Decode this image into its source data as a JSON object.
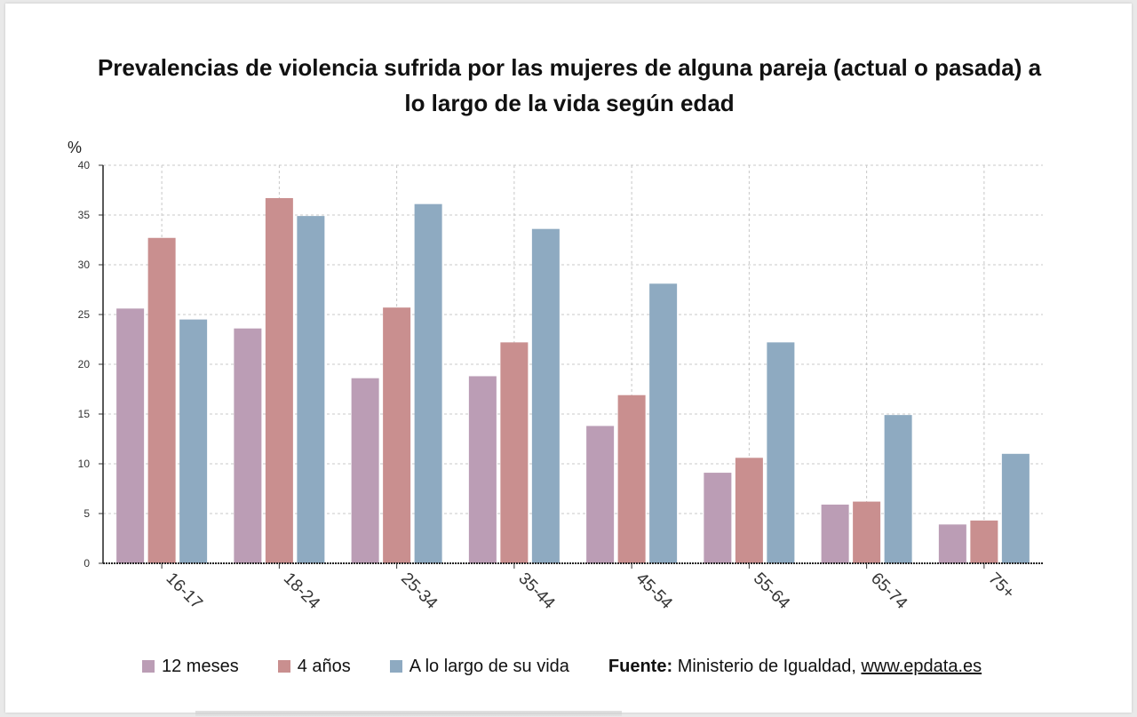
{
  "chart_data": {
    "type": "bar",
    "title": "Prevalencias de violencia sufrida por las mujeres de alguna pareja (actual o pasada) a lo largo de la vida según edad",
    "ylabel": "%",
    "xlabel": "",
    "ylim": [
      0,
      40
    ],
    "yticks": [
      0,
      5,
      10,
      15,
      20,
      25,
      30,
      35,
      40
    ],
    "grid": true,
    "legend_position": "bottom",
    "categories": [
      "16-17",
      "18-24",
      "25-34",
      "35-44",
      "45-54",
      "55-64",
      "65-74",
      "75+"
    ],
    "series": [
      {
        "name": "12 meses",
        "color": "#bb9db5",
        "values": [
          25.6,
          23.6,
          18.6,
          18.8,
          13.8,
          9.1,
          5.9,
          3.9
        ]
      },
      {
        "name": "4 años",
        "color": "#c98f8f",
        "values": [
          32.7,
          36.7,
          25.7,
          22.2,
          16.9,
          10.6,
          6.2,
          4.3
        ]
      },
      {
        "name": "A lo largo de su vida",
        "color": "#8eaac1",
        "values": [
          24.5,
          34.9,
          36.1,
          33.6,
          28.1,
          22.2,
          14.9,
          11.0
        ]
      }
    ]
  },
  "source": {
    "label": "Fuente:",
    "text": "Ministerio de Igualdad,",
    "link": "www.epdata.es"
  }
}
